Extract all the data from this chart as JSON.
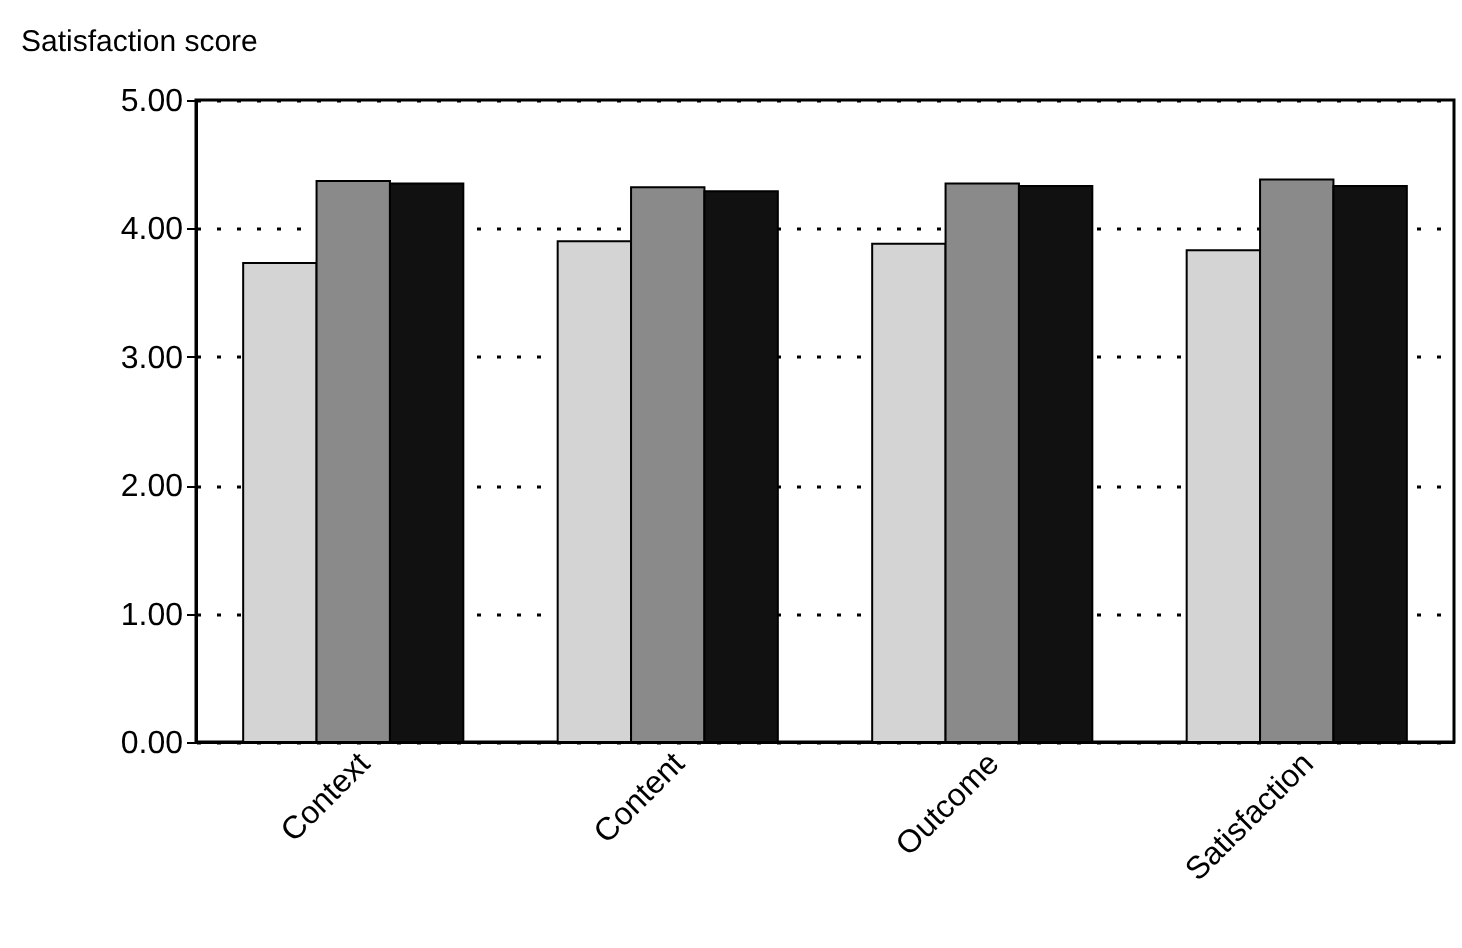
{
  "chart_data": {
    "type": "bar",
    "ylabel": "Satisfaction score",
    "categories": [
      "Context",
      "Content",
      "Outcome",
      "Satisfaction"
    ],
    "series": [
      {
        "color": "#d4d4d4",
        "values": [
          3.73,
          3.9,
          3.88,
          3.83
        ]
      },
      {
        "color": "#8a8a8a",
        "values": [
          4.37,
          4.32,
          4.35,
          4.38
        ]
      },
      {
        "color": "#111111",
        "values": [
          4.35,
          4.29,
          4.33,
          4.33
        ]
      }
    ],
    "ylim": [
      0,
      5
    ],
    "yticks": [
      {
        "value": 0,
        "label": "0.00"
      },
      {
        "value": 1,
        "label": "1.00"
      },
      {
        "value": 2,
        "label": "2.00"
      },
      {
        "value": 3,
        "label": "3.00"
      },
      {
        "value": 4,
        "label": "4.00"
      },
      {
        "value": 5,
        "label": "5.00"
      }
    ],
    "grid": "y",
    "legend": false
  }
}
